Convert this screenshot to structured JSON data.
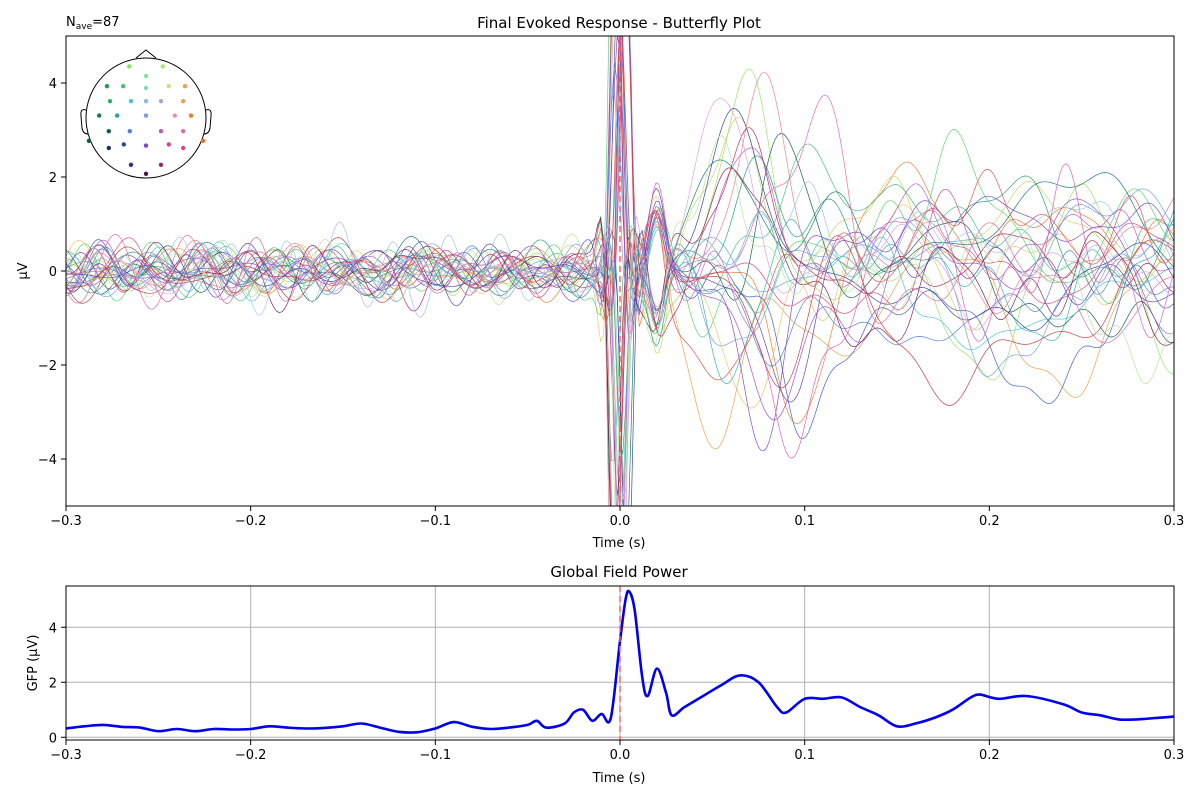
{
  "chart_data": [
    {
      "type": "line",
      "title": "Final Evoked Response - Butterfly Plot",
      "xlabel": "Time (s)",
      "ylabel": "µV",
      "xlim": [
        -0.3,
        0.3
      ],
      "ylim": [
        -5,
        5
      ],
      "xticks": [
        -0.3,
        -0.2,
        -0.1,
        0.0,
        0.1,
        0.2,
        0.3
      ],
      "xtick_labels": [
        "−0.3",
        "−0.2",
        "−0.1",
        "0.0",
        "0.1",
        "0.2",
        "0.3"
      ],
      "yticks": [
        -4,
        -2,
        0,
        2,
        4
      ],
      "ytick_labels": [
        "−4",
        "−2",
        "0",
        "2",
        "4"
      ],
      "grid": false,
      "annotation": {
        "main": "N",
        "sub": "ave",
        "suffix": "=87"
      },
      "event_marker": {
        "x": 0.0,
        "color": "#ff5a5a",
        "style": "dashed"
      },
      "n_channels": 32,
      "series_colors": [
        "#f07a2f",
        "#e8a04c",
        "#f2c45e",
        "#c9d65a",
        "#9be066",
        "#56d46a",
        "#3fbf7f",
        "#1fa277",
        "#137a5e",
        "#0e5c49",
        "#2bb5b0",
        "#49c3d6",
        "#5aa6e0",
        "#4f7ed8",
        "#3d5cc7",
        "#2d3fa8",
        "#5b3fb0",
        "#7d46c4",
        "#9a4fd0",
        "#b95ac8",
        "#d062b8",
        "#e06aa0",
        "#e87f8a",
        "#d8467a",
        "#b02a5e",
        "#84204a",
        "#c23b3b",
        "#e05050",
        "#7a9ae8",
        "#9fc0f0",
        "#b2e6a0",
        "#d9a0e0"
      ],
      "topomap": {
        "sensors": [
          {
            "x": -0.28,
            "y": -0.86,
            "color": "#88e060"
          },
          {
            "x": 0.28,
            "y": -0.86,
            "color": "#a6e866"
          },
          {
            "x": 0.0,
            "y": -0.7,
            "color": "#7ee6a0"
          },
          {
            "x": -0.65,
            "y": -0.53,
            "color": "#1f9a5a"
          },
          {
            "x": -0.38,
            "y": -0.53,
            "color": "#3fbf7f"
          },
          {
            "x": 0.0,
            "y": -0.5,
            "color": "#7fdcc0"
          },
          {
            "x": 0.38,
            "y": -0.53,
            "color": "#d0e070"
          },
          {
            "x": 0.65,
            "y": -0.53,
            "color": "#f2a040"
          },
          {
            "x": -0.6,
            "y": -0.28,
            "color": "#2bb070"
          },
          {
            "x": -0.25,
            "y": -0.28,
            "color": "#49c3d6"
          },
          {
            "x": 0.0,
            "y": -0.28,
            "color": "#8ab6e8"
          },
          {
            "x": 0.25,
            "y": -0.28,
            "color": "#b0a0e0"
          },
          {
            "x": 0.62,
            "y": -0.28,
            "color": "#e8a060"
          },
          {
            "x": -0.78,
            "y": -0.04,
            "color": "#137a5e"
          },
          {
            "x": -0.48,
            "y": -0.04,
            "color": "#2aa0a8"
          },
          {
            "x": 0.0,
            "y": -0.04,
            "color": "#7a9ae8"
          },
          {
            "x": 0.48,
            "y": -0.04,
            "color": "#e890c0"
          },
          {
            "x": 0.75,
            "y": -0.04,
            "color": "#f07a2f"
          },
          {
            "x": -0.62,
            "y": 0.22,
            "color": "#0e5c49"
          },
          {
            "x": -0.27,
            "y": 0.22,
            "color": "#4f7ed8"
          },
          {
            "x": 0.25,
            "y": 0.22,
            "color": "#b95ac8"
          },
          {
            "x": 0.62,
            "y": 0.22,
            "color": "#e06aa0"
          },
          {
            "x": -0.95,
            "y": 0.38,
            "color": "#0a5a30"
          },
          {
            "x": 0.95,
            "y": 0.38,
            "color": "#f06a2a"
          },
          {
            "x": -0.62,
            "y": 0.5,
            "color": "#1b2f6a"
          },
          {
            "x": -0.37,
            "y": 0.44,
            "color": "#2d3fa8"
          },
          {
            "x": 0.0,
            "y": 0.46,
            "color": "#7d46c4"
          },
          {
            "x": 0.38,
            "y": 0.44,
            "color": "#d0468a"
          },
          {
            "x": 0.62,
            "y": 0.5,
            "color": "#d8467a"
          },
          {
            "x": -0.25,
            "y": 0.78,
            "color": "#3d2a7a"
          },
          {
            "x": 0.25,
            "y": 0.78,
            "color": "#9a2a6e"
          },
          {
            "x": 0.0,
            "y": 0.93,
            "color": "#5a1040"
          }
        ]
      }
    },
    {
      "type": "line",
      "title": "Global Field Power",
      "xlabel": "Time (s)",
      "ylabel": "GFP (µV)",
      "xlim": [
        -0.3,
        0.3
      ],
      "ylim": [
        -0.1,
        5.5
      ],
      "xticks": [
        -0.3,
        -0.2,
        -0.1,
        0.0,
        0.1,
        0.2,
        0.3
      ],
      "xtick_labels": [
        "−0.3",
        "−0.2",
        "−0.1",
        "0.0",
        "0.1",
        "0.2",
        "0.3"
      ],
      "yticks": [
        0,
        2,
        4
      ],
      "ytick_labels": [
        "0",
        "2",
        "4"
      ],
      "grid": true,
      "event_marker": {
        "x": 0.0,
        "color": "#ff5a5a",
        "style": "dashed"
      },
      "series": [
        {
          "color": "#0000ee",
          "x": [
            -0.3,
            -0.29,
            -0.28,
            -0.27,
            -0.26,
            -0.25,
            -0.24,
            -0.23,
            -0.22,
            -0.21,
            -0.2,
            -0.19,
            -0.18,
            -0.17,
            -0.16,
            -0.15,
            -0.14,
            -0.13,
            -0.12,
            -0.11,
            -0.1,
            -0.09,
            -0.08,
            -0.07,
            -0.06,
            -0.05,
            -0.045,
            -0.04,
            -0.03,
            -0.025,
            -0.02,
            -0.015,
            -0.01,
            -0.005,
            0.0,
            0.003,
            0.005,
            0.008,
            0.012,
            0.015,
            0.02,
            0.025,
            0.028,
            0.035,
            0.045,
            0.055,
            0.065,
            0.075,
            0.085,
            0.09,
            0.1,
            0.11,
            0.12,
            0.13,
            0.14,
            0.15,
            0.16,
            0.17,
            0.18,
            0.19,
            0.195,
            0.205,
            0.22,
            0.24,
            0.25,
            0.26,
            0.27,
            0.28,
            0.29,
            0.3
          ],
          "y": [
            0.32,
            0.4,
            0.45,
            0.38,
            0.35,
            0.22,
            0.3,
            0.22,
            0.3,
            0.28,
            0.3,
            0.4,
            0.35,
            0.32,
            0.34,
            0.4,
            0.5,
            0.35,
            0.2,
            0.18,
            0.32,
            0.55,
            0.38,
            0.3,
            0.35,
            0.45,
            0.6,
            0.35,
            0.5,
            0.9,
            1.0,
            0.6,
            0.85,
            0.7,
            3.5,
            5.0,
            5.3,
            4.6,
            2.2,
            1.5,
            2.5,
            1.6,
            0.8,
            1.1,
            1.5,
            1.9,
            2.25,
            2.0,
            1.1,
            0.9,
            1.4,
            1.4,
            1.45,
            1.1,
            0.8,
            0.4,
            0.5,
            0.7,
            1.0,
            1.45,
            1.55,
            1.4,
            1.5,
            1.2,
            0.9,
            0.8,
            0.65,
            0.65,
            0.7,
            0.75
          ]
        }
      ]
    }
  ]
}
